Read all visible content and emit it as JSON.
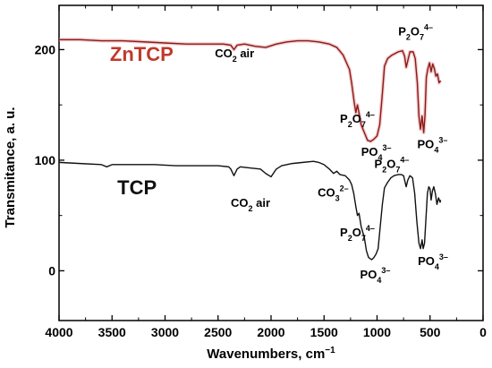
{
  "chart_data": {
    "type": "line",
    "xlabel": "Wavenumbers, cm",
    "xlabel_sup": "−1",
    "ylabel": "Transmitance, a. u.",
    "xlim": [
      4000,
      0
    ],
    "ylim": [
      -45,
      240
    ],
    "x_ticks": [
      "4000",
      "3500",
      "3000",
      "2500",
      "2000",
      "1500",
      "1000",
      "500",
      "0"
    ],
    "y_ticks": [
      "0",
      "100",
      "200"
    ],
    "series": [
      {
        "name": "ZnTCP",
        "color": "#8b1a1a",
        "points": [
          [
            4000,
            209
          ],
          [
            3800,
            209
          ],
          [
            3600,
            208
          ],
          [
            3400,
            208
          ],
          [
            3200,
            207
          ],
          [
            3000,
            206
          ],
          [
            2800,
            205
          ],
          [
            2600,
            205
          ],
          [
            2450,
            205
          ],
          [
            2380,
            204
          ],
          [
            2350,
            200
          ],
          [
            2320,
            204
          ],
          [
            2250,
            205
          ],
          [
            2150,
            203
          ],
          [
            2050,
            202
          ],
          [
            1950,
            205
          ],
          [
            1850,
            207
          ],
          [
            1750,
            208
          ],
          [
            1650,
            208
          ],
          [
            1550,
            207
          ],
          [
            1450,
            205
          ],
          [
            1380,
            202
          ],
          [
            1320,
            195
          ],
          [
            1260,
            182
          ],
          [
            1240,
            170
          ],
          [
            1215,
            152
          ],
          [
            1200,
            143
          ],
          [
            1185,
            150
          ],
          [
            1165,
            140
          ],
          [
            1150,
            132
          ],
          [
            1120,
            125
          ],
          [
            1090,
            118
          ],
          [
            1060,
            117
          ],
          [
            1030,
            119
          ],
          [
            1000,
            122
          ],
          [
            975,
            132
          ],
          [
            950,
            160
          ],
          [
            930,
            185
          ],
          [
            900,
            192
          ],
          [
            860,
            195
          ],
          [
            800,
            198
          ],
          [
            760,
            199
          ],
          [
            740,
            194
          ],
          [
            725,
            184
          ],
          [
            710,
            190
          ],
          [
            690,
            198
          ],
          [
            660,
            198
          ],
          [
            640,
            192
          ],
          [
            620,
            170
          ],
          [
            605,
            140
          ],
          [
            590,
            128
          ],
          [
            575,
            140
          ],
          [
            560,
            125
          ],
          [
            548,
            140
          ],
          [
            535,
            175
          ],
          [
            520,
            183
          ],
          [
            505,
            188
          ],
          [
            490,
            180
          ],
          [
            475,
            187
          ],
          [
            460,
            183
          ],
          [
            445,
            176
          ],
          [
            430,
            178
          ],
          [
            415,
            170
          ],
          [
            400,
            172
          ]
        ]
      },
      {
        "name": "TCP",
        "color": "#111111",
        "points": [
          [
            4000,
            98
          ],
          [
            3800,
            97
          ],
          [
            3600,
            96
          ],
          [
            3550,
            94
          ],
          [
            3500,
            96
          ],
          [
            3300,
            96
          ],
          [
            3100,
            96
          ],
          [
            2900,
            95
          ],
          [
            2700,
            95
          ],
          [
            2500,
            95
          ],
          [
            2400,
            94
          ],
          [
            2380,
            92
          ],
          [
            2350,
            86
          ],
          [
            2320,
            92
          ],
          [
            2290,
            94
          ],
          [
            2200,
            93
          ],
          [
            2100,
            92
          ],
          [
            2050,
            88
          ],
          [
            2000,
            85
          ],
          [
            1950,
            92
          ],
          [
            1900,
            95
          ],
          [
            1800,
            97
          ],
          [
            1700,
            98
          ],
          [
            1600,
            99
          ],
          [
            1550,
            98
          ],
          [
            1500,
            96
          ],
          [
            1450,
            92
          ],
          [
            1410,
            88
          ],
          [
            1380,
            90
          ],
          [
            1350,
            87
          ],
          [
            1300,
            86
          ],
          [
            1260,
            82
          ],
          [
            1240,
            78
          ],
          [
            1220,
            70
          ],
          [
            1200,
            58
          ],
          [
            1185,
            50
          ],
          [
            1170,
            52
          ],
          [
            1150,
            40
          ],
          [
            1120,
            30
          ],
          [
            1100,
            18
          ],
          [
            1080,
            12
          ],
          [
            1050,
            10
          ],
          [
            1030,
            12
          ],
          [
            1010,
            15
          ],
          [
            990,
            20
          ],
          [
            970,
            40
          ],
          [
            950,
            60
          ],
          [
            930,
            75
          ],
          [
            900,
            80
          ],
          [
            870,
            84
          ],
          [
            840,
            86
          ],
          [
            800,
            87
          ],
          [
            770,
            87
          ],
          [
            750,
            86
          ],
          [
            735,
            80
          ],
          [
            725,
            76
          ],
          [
            710,
            82
          ],
          [
            690,
            86
          ],
          [
            665,
            84
          ],
          [
            645,
            70
          ],
          [
            625,
            45
          ],
          [
            605,
            25
          ],
          [
            590,
            20
          ],
          [
            575,
            28
          ],
          [
            565,
            20
          ],
          [
            552,
            25
          ],
          [
            540,
            45
          ],
          [
            525,
            70
          ],
          [
            512,
            76
          ],
          [
            500,
            74
          ],
          [
            490,
            64
          ],
          [
            478,
            72
          ],
          [
            465,
            76
          ],
          [
            450,
            70
          ],
          [
            435,
            60
          ],
          [
            420,
            66
          ],
          [
            405,
            62
          ],
          [
            400,
            64
          ]
        ]
      }
    ],
    "series_labels": [
      {
        "text": "ZnTCP",
        "x": 3520,
        "y": 190,
        "color": "#c0392b"
      },
      {
        "text": "TCP",
        "x": 3450,
        "y": 69,
        "color": "#111111"
      }
    ],
    "annotations": [
      {
        "id": "co2-air-top",
        "x": 2530,
        "y": 193,
        "parts": [
          [
            "CO",
            ""
          ],
          [
            "2",
            "sub"
          ],
          [
            " air",
            ""
          ]
        ]
      },
      {
        "id": "p2o7-top-right",
        "x": 800,
        "y": 213,
        "parts": [
          [
            "P",
            ""
          ],
          [
            "2",
            "sub"
          ],
          [
            "O",
            ""
          ],
          [
            "7",
            "sub"
          ],
          [
            "4–",
            "sup"
          ]
        ]
      },
      {
        "id": "p2o7-top-left",
        "x": 1350,
        "y": 134,
        "parts": [
          [
            "P",
            ""
          ],
          [
            "2",
            "sub"
          ],
          [
            "O",
            ""
          ],
          [
            "7",
            "sub"
          ],
          [
            "4–",
            "sup"
          ]
        ]
      },
      {
        "id": "po4-top-mid",
        "x": 1150,
        "y": 104,
        "parts": [
          [
            "PO",
            ""
          ],
          [
            "4",
            "sub"
          ],
          [
            "3–",
            "sup"
          ]
        ]
      },
      {
        "id": "po4-top-right",
        "x": 620,
        "y": 111,
        "parts": [
          [
            "PO",
            ""
          ],
          [
            "4",
            "sub"
          ],
          [
            "3–",
            "sup"
          ]
        ]
      },
      {
        "id": "co2-air-bottom",
        "x": 2380,
        "y": 58,
        "parts": [
          [
            "CO",
            ""
          ],
          [
            "2",
            "sub"
          ],
          [
            " air",
            ""
          ]
        ]
      },
      {
        "id": "co3",
        "x": 1560,
        "y": 67,
        "parts": [
          [
            "CO",
            ""
          ],
          [
            "3",
            "sub"
          ],
          [
            "2–",
            "sup"
          ]
        ]
      },
      {
        "id": "p2o7-bottom-right",
        "x": 1025,
        "y": 93,
        "parts": [
          [
            "P",
            ""
          ],
          [
            "2",
            "sub"
          ],
          [
            "O",
            ""
          ],
          [
            "7",
            "sub"
          ],
          [
            "4–",
            "sup"
          ]
        ]
      },
      {
        "id": "p2o7-bottom-left",
        "x": 1350,
        "y": 31,
        "parts": [
          [
            "P",
            ""
          ],
          [
            "2",
            "sub"
          ],
          [
            "O",
            ""
          ],
          [
            "7",
            "sub"
          ],
          [
            "4–",
            "sup"
          ]
        ]
      },
      {
        "id": "po4-bottom-mid",
        "x": 1160,
        "y": -7,
        "parts": [
          [
            "PO",
            ""
          ],
          [
            "4",
            "sub"
          ],
          [
            "3–",
            "sup"
          ]
        ]
      },
      {
        "id": "po4-bottom-right",
        "x": 615,
        "y": 5,
        "parts": [
          [
            "PO",
            ""
          ],
          [
            "4",
            "sub"
          ],
          [
            "3–",
            "sup"
          ]
        ]
      }
    ]
  }
}
